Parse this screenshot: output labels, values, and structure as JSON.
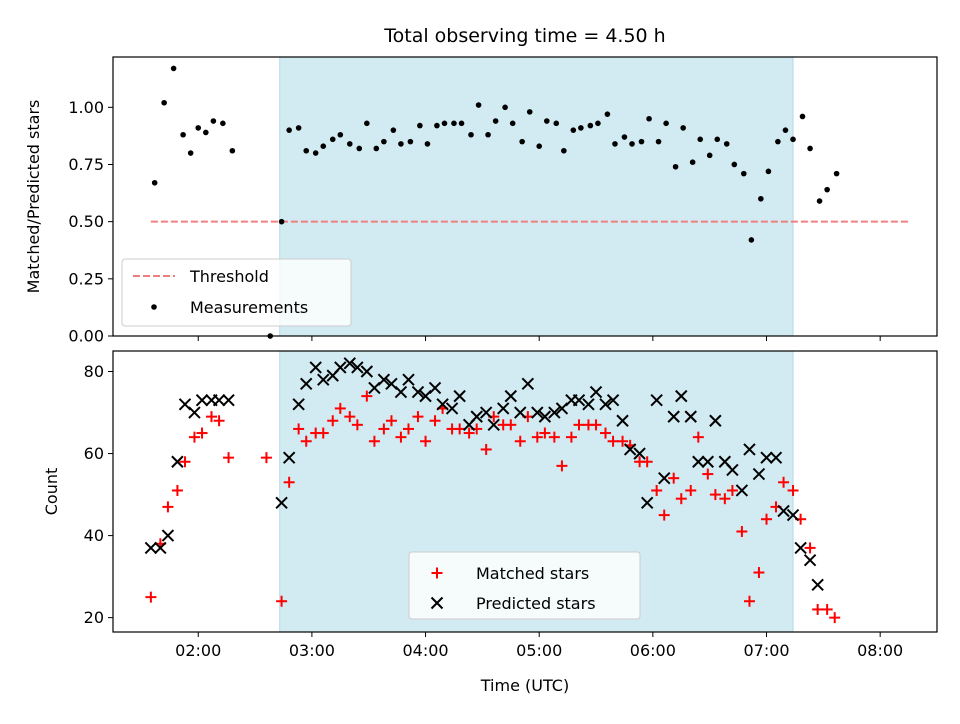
{
  "chart_data": {
    "title": "Total observing time = 4.50 h",
    "shaded_interval": {
      "start": "02:43",
      "end": "07:14",
      "color": "#add8e6"
    },
    "panels": [
      {
        "name": "ratio-panel",
        "type": "scatter",
        "ylabel": "Matched/Predicted stars",
        "ylim": [
          0.0,
          1.22
        ],
        "yticks": [
          "0.00",
          "0.25",
          "0.50",
          "0.75",
          "1.00"
        ],
        "threshold": {
          "name": "Threshold",
          "value": 0.5,
          "x_range": [
            "01:35",
            "08:15"
          ],
          "color": "#f08080"
        },
        "legend": {
          "position": "lower-left",
          "entries": [
            "Threshold",
            "Measurements"
          ]
        },
        "series": [
          {
            "name": "Measurements",
            "color": "#000000",
            "points": [
              [
                "01:37",
                0.67
              ],
              [
                "01:42",
                1.02
              ],
              [
                "01:47",
                1.17
              ],
              [
                "01:52",
                0.88
              ],
              [
                "01:56",
                0.8
              ],
              [
                "02:00",
                0.91
              ],
              [
                "02:04",
                0.89
              ],
              [
                "02:08",
                0.94
              ],
              [
                "02:13",
                0.93
              ],
              [
                "02:18",
                0.81
              ],
              [
                "02:38",
                0.0
              ],
              [
                "02:44",
                0.5
              ],
              [
                "02:48",
                0.9
              ],
              [
                "02:53",
                0.91
              ],
              [
                "02:57",
                0.81
              ],
              [
                "03:02",
                0.8
              ],
              [
                "03:06",
                0.83
              ],
              [
                "03:11",
                0.86
              ],
              [
                "03:15",
                0.88
              ],
              [
                "03:20",
                0.84
              ],
              [
                "03:25",
                0.82
              ],
              [
                "03:29",
                0.93
              ],
              [
                "03:34",
                0.82
              ],
              [
                "03:38",
                0.85
              ],
              [
                "03:43",
                0.9
              ],
              [
                "03:47",
                0.84
              ],
              [
                "03:52",
                0.85
              ],
              [
                "03:57",
                0.92
              ],
              [
                "04:01",
                0.84
              ],
              [
                "04:06",
                0.92
              ],
              [
                "04:10",
                0.93
              ],
              [
                "04:15",
                0.93
              ],
              [
                "04:19",
                0.93
              ],
              [
                "04:24",
                0.88
              ],
              [
                "04:28",
                1.01
              ],
              [
                "04:33",
                0.88
              ],
              [
                "04:37",
                0.94
              ],
              [
                "04:42",
                1.0
              ],
              [
                "04:46",
                0.93
              ],
              [
                "04:51",
                0.85
              ],
              [
                "04:55",
                0.98
              ],
              [
                "05:00",
                0.83
              ],
              [
                "05:04",
                0.94
              ],
              [
                "05:09",
                0.93
              ],
              [
                "05:13",
                0.81
              ],
              [
                "05:18",
                0.9
              ],
              [
                "05:22",
                0.91
              ],
              [
                "05:27",
                0.92
              ],
              [
                "05:31",
                0.93
              ],
              [
                "05:36",
                0.97
              ],
              [
                "05:40",
                0.84
              ],
              [
                "05:45",
                0.87
              ],
              [
                "05:49",
                0.84
              ],
              [
                "05:54",
                0.85
              ],
              [
                "05:58",
                0.95
              ],
              [
                "06:03",
                0.85
              ],
              [
                "06:07",
                0.93
              ],
              [
                "06:12",
                0.74
              ],
              [
                "06:16",
                0.91
              ],
              [
                "06:21",
                0.76
              ],
              [
                "06:25",
                0.86
              ],
              [
                "06:30",
                0.79
              ],
              [
                "06:34",
                0.86
              ],
              [
                "06:39",
                0.84
              ],
              [
                "06:43",
                0.75
              ],
              [
                "06:48",
                0.71
              ],
              [
                "06:52",
                0.42
              ],
              [
                "06:57",
                0.6
              ],
              [
                "07:01",
                0.72
              ],
              [
                "07:06",
                0.85
              ],
              [
                "07:10",
                0.9
              ],
              [
                "07:14",
                0.86
              ],
              [
                "07:19",
                0.96
              ],
              [
                "07:23",
                0.82
              ],
              [
                "07:28",
                0.59
              ],
              [
                "07:32",
                0.64
              ],
              [
                "07:37",
                0.71
              ]
            ]
          }
        ]
      },
      {
        "name": "count-panel",
        "type": "scatter",
        "xlabel": "Time (UTC)",
        "ylabel": "Count",
        "ylim": [
          16.5,
          85
        ],
        "yticks": [
          "20",
          "40",
          "60",
          "80"
        ],
        "xticks": [
          "02:00",
          "03:00",
          "04:00",
          "05:00",
          "06:00",
          "07:00",
          "08:00"
        ],
        "legend": {
          "position": "lower-center",
          "entries": [
            "Matched stars",
            "Predicted stars"
          ]
        },
        "series": [
          {
            "name": "Matched stars",
            "marker": "plus",
            "color": "#ff0000",
            "points": [
              [
                "01:35",
                25
              ],
              [
                "01:40",
                38
              ],
              [
                "01:44",
                47
              ],
              [
                "01:49",
                51
              ],
              [
                "01:53",
                58
              ],
              [
                "01:58",
                64
              ],
              [
                "02:02",
                65
              ],
              [
                "02:07",
                69
              ],
              [
                "02:11",
                68
              ],
              [
                "02:16",
                59
              ],
              [
                "02:36",
                59
              ],
              [
                "02:44",
                24
              ],
              [
                "02:48",
                53
              ],
              [
                "02:53",
                66
              ],
              [
                "02:57",
                63
              ],
              [
                "03:02",
                65
              ],
              [
                "03:06",
                65
              ],
              [
                "03:11",
                68
              ],
              [
                "03:15",
                71
              ],
              [
                "03:20",
                69
              ],
              [
                "03:24",
                67
              ],
              [
                "03:29",
                74
              ],
              [
                "03:33",
                63
              ],
              [
                "03:38",
                66
              ],
              [
                "03:42",
                68
              ],
              [
                "03:47",
                64
              ],
              [
                "03:51",
                66
              ],
              [
                "03:56",
                69
              ],
              [
                "04:00",
                63
              ],
              [
                "04:05",
                68
              ],
              [
                "04:09",
                71
              ],
              [
                "04:14",
                66
              ],
              [
                "04:18",
                66
              ],
              [
                "04:23",
                65
              ],
              [
                "04:27",
                66
              ],
              [
                "04:32",
                61
              ],
              [
                "04:36",
                69
              ],
              [
                "04:41",
                67
              ],
              [
                "04:45",
                67
              ],
              [
                "04:50",
                63
              ],
              [
                "04:54",
                69
              ],
              [
                "04:59",
                64
              ],
              [
                "05:03",
                65
              ],
              [
                "05:08",
                64
              ],
              [
                "05:12",
                57
              ],
              [
                "05:17",
                64
              ],
              [
                "05:21",
                67
              ],
              [
                "05:26",
                67
              ],
              [
                "05:30",
                67
              ],
              [
                "05:35",
                65
              ],
              [
                "05:39",
                63
              ],
              [
                "05:44",
                63
              ],
              [
                "05:48",
                62
              ],
              [
                "05:53",
                58
              ],
              [
                "05:57",
                58
              ],
              [
                "06:02",
                51
              ],
              [
                "06:06",
                45
              ],
              [
                "06:11",
                54
              ],
              [
                "06:15",
                49
              ],
              [
                "06:20",
                51
              ],
              [
                "06:24",
                64
              ],
              [
                "06:29",
                55
              ],
              [
                "06:33",
                50
              ],
              [
                "06:38",
                49
              ],
              [
                "06:42",
                51
              ],
              [
                "06:47",
                41
              ],
              [
                "06:51",
                24
              ],
              [
                "06:56",
                31
              ],
              [
                "07:00",
                44
              ],
              [
                "07:05",
                47
              ],
              [
                "07:09",
                53
              ],
              [
                "07:14",
                51
              ],
              [
                "07:18",
                44
              ],
              [
                "07:23",
                37
              ],
              [
                "07:27",
                22
              ],
              [
                "07:32",
                22
              ],
              [
                "07:36",
                20
              ]
            ]
          },
          {
            "name": "Predicted stars",
            "marker": "x",
            "color": "#000000",
            "points": [
              [
                "01:35",
                37
              ],
              [
                "01:40",
                37
              ],
              [
                "01:44",
                40
              ],
              [
                "01:49",
                58
              ],
              [
                "01:53",
                72
              ],
              [
                "01:58",
                70
              ],
              [
                "02:02",
                73
              ],
              [
                "02:07",
                73
              ],
              [
                "02:11",
                73
              ],
              [
                "02:16",
                73
              ],
              [
                "02:44",
                48
              ],
              [
                "02:48",
                59
              ],
              [
                "02:53",
                72
              ],
              [
                "02:57",
                77
              ],
              [
                "03:02",
                81
              ],
              [
                "03:06",
                78
              ],
              [
                "03:11",
                79
              ],
              [
                "03:15",
                81
              ],
              [
                "03:20",
                82
              ],
              [
                "03:24",
                81
              ],
              [
                "03:29",
                80
              ],
              [
                "03:33",
                76
              ],
              [
                "03:38",
                78
              ],
              [
                "03:42",
                77
              ],
              [
                "03:47",
                75
              ],
              [
                "03:51",
                78
              ],
              [
                "03:56",
                75
              ],
              [
                "04:00",
                74
              ],
              [
                "04:05",
                76
              ],
              [
                "04:09",
                72
              ],
              [
                "04:14",
                71
              ],
              [
                "04:18",
                74
              ],
              [
                "04:23",
                67
              ],
              [
                "04:27",
                69
              ],
              [
                "04:32",
                70
              ],
              [
                "04:36",
                67
              ],
              [
                "04:41",
                71
              ],
              [
                "04:45",
                74
              ],
              [
                "04:50",
                70
              ],
              [
                "04:54",
                77
              ],
              [
                "04:59",
                70
              ],
              [
                "05:03",
                69
              ],
              [
                "05:08",
                70
              ],
              [
                "05:12",
                71
              ],
              [
                "05:17",
                73
              ],
              [
                "05:21",
                73
              ],
              [
                "05:26",
                72
              ],
              [
                "05:30",
                75
              ],
              [
                "05:35",
                72
              ],
              [
                "05:39",
                73
              ],
              [
                "05:44",
                68
              ],
              [
                "05:48",
                61
              ],
              [
                "05:53",
                60
              ],
              [
                "05:57",
                48
              ],
              [
                "06:02",
                73
              ],
              [
                "06:06",
                54
              ],
              [
                "06:11",
                69
              ],
              [
                "06:15",
                74
              ],
              [
                "06:20",
                69
              ],
              [
                "06:24",
                58
              ],
              [
                "06:29",
                58
              ],
              [
                "06:33",
                68
              ],
              [
                "06:38",
                58
              ],
              [
                "06:42",
                56
              ],
              [
                "06:47",
                51
              ],
              [
                "06:51",
                61
              ],
              [
                "06:56",
                55
              ],
              [
                "07:00",
                59
              ],
              [
                "07:05",
                59
              ],
              [
                "07:09",
                46
              ],
              [
                "07:14",
                45
              ],
              [
                "07:18",
                37
              ],
              [
                "07:23",
                34
              ],
              [
                "07:27",
                28
              ]
            ]
          }
        ]
      }
    ]
  }
}
